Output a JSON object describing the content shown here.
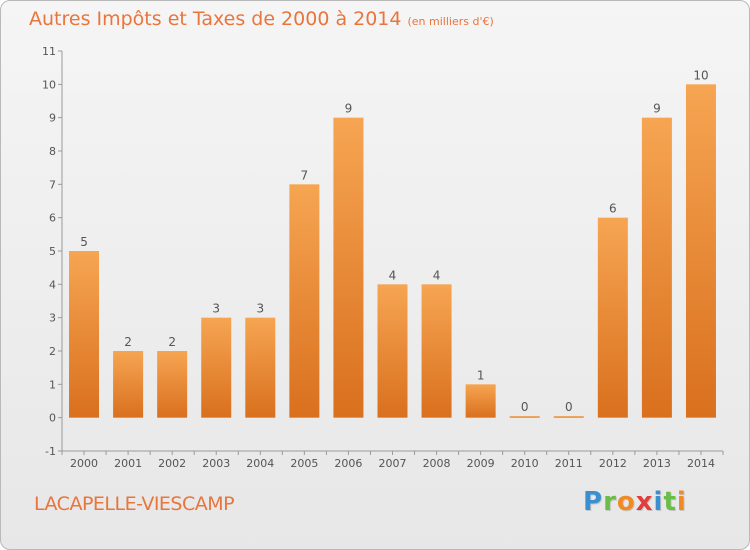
{
  "title": "Autres Impôts et Taxes de 2000 à 2014",
  "unit": "(en milliers d'€)",
  "commune": "LACAPELLE-VIESCAMP",
  "logo": {
    "letters": [
      "P",
      "r",
      "o",
      "x",
      "i",
      "t",
      "i"
    ],
    "colors": [
      "#3a8fd0",
      "#6abd45",
      "#f08a24",
      "#e23c3c",
      "#3a8fd0",
      "#6abd45",
      "#f08a24"
    ]
  },
  "colors": {
    "accent": "#e9753c",
    "bar_top": "#f6a552",
    "bar_bottom": "#d9701e"
  },
  "chart_data": {
    "type": "bar",
    "categories": [
      "2000",
      "2001",
      "2002",
      "2003",
      "2004",
      "2005",
      "2006",
      "2007",
      "2008",
      "2009",
      "2010",
      "2011",
      "2012",
      "2013",
      "2014"
    ],
    "values": [
      5,
      2,
      2,
      3,
      3,
      7,
      9,
      4,
      4,
      1,
      0,
      0,
      6,
      9,
      10
    ],
    "data_labels": [
      "5",
      "2",
      "2",
      "3",
      "3",
      "7",
      "9",
      "4",
      "4",
      "1",
      "0",
      "0",
      "6",
      "9",
      "10"
    ],
    "y_ticks": [
      "-1",
      "0",
      "1",
      "2",
      "3",
      "4",
      "5",
      "6",
      "7",
      "8",
      "9",
      "10",
      "11"
    ],
    "ylim": [
      -1,
      11
    ],
    "grid": false,
    "xlabel": "",
    "ylabel": ""
  }
}
